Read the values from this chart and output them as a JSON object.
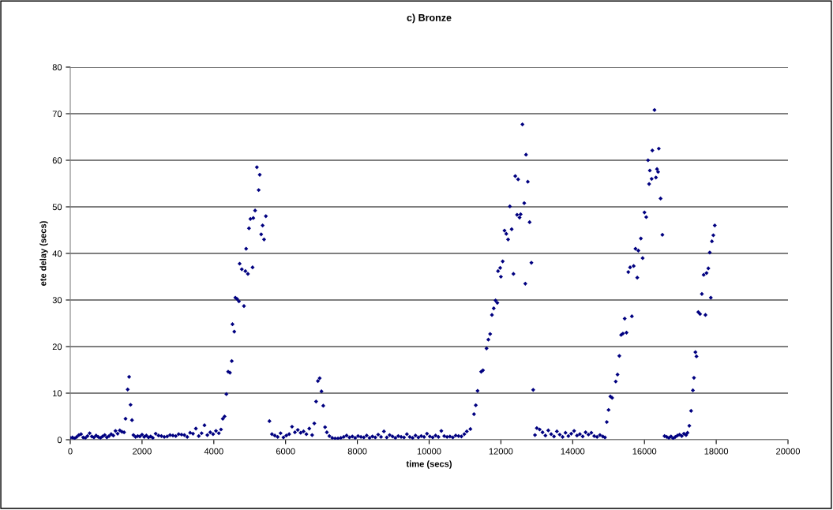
{
  "chart_data": {
    "type": "scatter",
    "title": "c) Bronze",
    "xlabel": "time (secs)",
    "ylabel": "ete delay (secs)",
    "xlim": [
      0,
      20000
    ],
    "ylim": [
      0,
      80
    ],
    "xticks": [
      0,
      2000,
      4000,
      6000,
      8000,
      10000,
      12000,
      14000,
      16000,
      18000,
      20000
    ],
    "yticks": [
      0,
      10,
      20,
      30,
      40,
      50,
      60,
      70,
      80
    ],
    "grid": "y",
    "marker": "diamond",
    "legend": false,
    "series": [
      {
        "color": "#000080",
        "x": [
          0,
          60,
          120,
          180,
          240,
          300,
          360,
          420,
          480,
          540,
          600,
          660,
          720,
          780,
          840,
          900,
          960,
          1020,
          1080,
          1140,
          1200,
          1260,
          1320,
          1380,
          1440,
          1500,
          1540,
          1600,
          1640,
          1680,
          1720,
          1760,
          1820,
          1880,
          1940,
          2000,
          2060,
          2120,
          2180,
          2240,
          2300,
          2380,
          2460,
          2540,
          2620,
          2700,
          2780,
          2860,
          2940,
          3020,
          3100,
          3180,
          3260,
          3340,
          3420,
          3500,
          3580,
          3660,
          3740,
          3820,
          3900,
          3980,
          4060,
          4140,
          4200,
          4250,
          4300,
          4350,
          4400,
          4450,
          4500,
          4520,
          4570,
          4600,
          4650,
          4700,
          4720,
          4780,
          4840,
          4880,
          4900,
          4950,
          4980,
          5020,
          5080,
          5100,
          5150,
          5200,
          5250,
          5280,
          5320,
          5360,
          5400,
          5450,
          5550,
          5620,
          5700,
          5780,
          5860,
          5940,
          6020,
          6100,
          6180,
          6260,
          6340,
          6420,
          6500,
          6580,
          6660,
          6740,
          6800,
          6850,
          6900,
          6950,
          7000,
          7050,
          7100,
          7150,
          7220,
          7300,
          7380,
          7460,
          7540,
          7620,
          7700,
          7780,
          7860,
          7940,
          8020,
          8100,
          8180,
          8260,
          8340,
          8420,
          8500,
          8580,
          8660,
          8740,
          8820,
          8900,
          8980,
          9060,
          9140,
          9220,
          9300,
          9380,
          9460,
          9540,
          9620,
          9700,
          9780,
          9860,
          9940,
          10020,
          10100,
          10180,
          10260,
          10340,
          10420,
          10500,
          10580,
          10660,
          10740,
          10820,
          10900,
          10980,
          11050,
          11150,
          11250,
          11300,
          11350,
          11450,
          11500,
          11600,
          11650,
          11700,
          11750,
          11800,
          11850,
          11900,
          11920,
          11980,
          12000,
          12050,
          12100,
          12150,
          12200,
          12250,
          12300,
          12350,
          12400,
          12450,
          12480,
          12520,
          12550,
          12600,
          12650,
          12680,
          12700,
          12750,
          12800,
          12850,
          12900,
          12950,
          13000,
          13080,
          13160,
          13240,
          13320,
          13400,
          13480,
          13560,
          13640,
          13720,
          13800,
          13880,
          13960,
          14040,
          14120,
          14200,
          14280,
          14360,
          14440,
          14520,
          14600,
          14680,
          14760,
          14840,
          14900,
          14950,
          15000,
          15050,
          15100,
          15200,
          15250,
          15300,
          15350,
          15400,
          15450,
          15500,
          15550,
          15600,
          15650,
          15700,
          15750,
          15800,
          15830,
          15900,
          15950,
          16000,
          16050,
          16100,
          16130,
          16150,
          16200,
          16220,
          16280,
          16320,
          16350,
          16380,
          16400,
          16450,
          16500,
          16560,
          16620,
          16680,
          16740,
          16800,
          16860,
          16920,
          16980,
          17040,
          17100,
          17160,
          17200,
          17250,
          17300,
          17350,
          17380,
          17420,
          17450,
          17500,
          17550,
          17600,
          17650,
          17700,
          17730,
          17780,
          17820,
          17850,
          17880,
          17920,
          17960
        ],
        "values": [
          0.4,
          0.5,
          0.3,
          0.6,
          1.0,
          1.2,
          0.5,
          0.4,
          0.8,
          1.4,
          0.7,
          0.5,
          0.9,
          0.6,
          0.4,
          0.7,
          1.0,
          0.5,
          0.8,
          1.2,
          0.9,
          1.9,
          1.3,
          2.0,
          1.7,
          1.6,
          4.5,
          10.8,
          13.5,
          7.5,
          4.2,
          1.0,
          0.6,
          0.8,
          0.7,
          1.1,
          0.6,
          0.9,
          0.5,
          0.7,
          0.4,
          1.3,
          0.9,
          0.8,
          0.6,
          0.7,
          1.0,
          0.9,
          0.8,
          1.2,
          1.1,
          1.0,
          0.6,
          1.5,
          1.3,
          2.4,
          0.8,
          1.4,
          3.1,
          1.0,
          1.6,
          1.2,
          1.9,
          1.4,
          2.2,
          4.5,
          5.0,
          9.8,
          14.6,
          14.4,
          16.9,
          24.8,
          23.2,
          30.5,
          30.2,
          29.7,
          37.8,
          36.6,
          28.7,
          36.2,
          41.0,
          35.6,
          45.4,
          47.4,
          37.0,
          47.6,
          49.2,
          58.5,
          53.6,
          56.9,
          44.1,
          46.0,
          43.0,
          48.0,
          4.0,
          1.2,
          0.9,
          0.6,
          1.4,
          0.5,
          0.9,
          1.2,
          2.8,
          1.6,
          2.1,
          1.5,
          1.8,
          1.2,
          2.4,
          1.0,
          3.5,
          8.2,
          12.6,
          13.2,
          10.4,
          7.3,
          2.7,
          1.6,
          0.8,
          0.4,
          0.3,
          0.3,
          0.4,
          0.6,
          0.9,
          0.5,
          0.7,
          0.4,
          0.8,
          0.6,
          0.5,
          0.9,
          0.4,
          0.7,
          0.5,
          1.1,
          0.6,
          1.8,
          0.5,
          1.0,
          0.7,
          0.4,
          0.8,
          0.6,
          0.5,
          1.2,
          0.6,
          0.4,
          0.9,
          0.5,
          0.8,
          0.6,
          1.3,
          0.7,
          0.5,
          0.9,
          0.6,
          1.9,
          0.8,
          0.6,
          0.7,
          0.5,
          0.9,
          0.8,
          0.7,
          1.2,
          1.8,
          2.3,
          5.5,
          7.4,
          10.5,
          14.6,
          14.9,
          19.6,
          21.5,
          22.7,
          26.8,
          28.2,
          29.9,
          29.4,
          36.2,
          36.9,
          35.0,
          38.3,
          44.9,
          44.2,
          43.0,
          50.1,
          45.2,
          35.6,
          56.6,
          48.3,
          55.9,
          47.7,
          48.4,
          67.7,
          50.8,
          33.5,
          61.2,
          55.4,
          46.7,
          38.0,
          10.7,
          1.0,
          2.5,
          2.2,
          1.6,
          0.9,
          2.0,
          1.2,
          0.7,
          1.8,
          1.1,
          0.6,
          1.5,
          0.8,
          1.3,
          1.9,
          0.9,
          1.2,
          0.7,
          1.6,
          1.1,
          1.5,
          0.8,
          0.6,
          1.0,
          0.7,
          0.5,
          3.8,
          6.4,
          9.3,
          9.0,
          12.5,
          14.0,
          18.0,
          22.5,
          22.8,
          26.0,
          23.0,
          36.0,
          37.0,
          26.5,
          37.3,
          41.0,
          34.8,
          40.6,
          43.2,
          39.0,
          48.8,
          47.8,
          60.0,
          54.9,
          57.8,
          56.0,
          62.1,
          70.8,
          56.3,
          58.1,
          57.5,
          62.5,
          51.8,
          44.0,
          0.8,
          0.6,
          0.4,
          0.7,
          0.3,
          0.6,
          0.9,
          1.1,
          0.8,
          1.3,
          1.0,
          1.5,
          3.0,
          6.2,
          10.6,
          13.3,
          18.8,
          17.9,
          27.4,
          27.0,
          31.3,
          35.4,
          26.8,
          35.8,
          36.8,
          40.2,
          30.5,
          42.6,
          43.9,
          46.0
        ]
      }
    ]
  }
}
